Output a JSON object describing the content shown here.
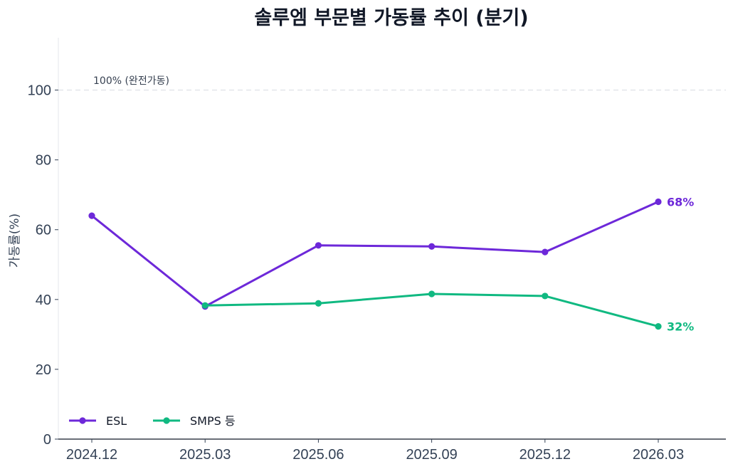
{
  "chart_data": {
    "type": "line",
    "title": "솔루엠 부문별 가동률 추이 (분기)",
    "xlabel": "",
    "ylabel": "가동률(%)",
    "categories": [
      "2024.12",
      "2025.03",
      "2025.06",
      "2025.09",
      "2025.12",
      "2026.03"
    ],
    "ylim": [
      0,
      115
    ],
    "yticks": [
      0,
      20,
      40,
      60,
      80,
      100
    ],
    "grid": false,
    "legend_position": "bottom-left",
    "reference_line": {
      "value": 100,
      "label": "100% (완전가동)"
    },
    "series": [
      {
        "name": "ESL",
        "color": "#6D28D9",
        "values": [
          64,
          38,
          55.5,
          55.2,
          53.6,
          68
        ],
        "end_label": "68%"
      },
      {
        "name": "SMPS 등",
        "color": "#10B981",
        "values": [
          null,
          38.3,
          38.9,
          41.6,
          41.0,
          32.3
        ],
        "end_label": "32%"
      }
    ]
  }
}
